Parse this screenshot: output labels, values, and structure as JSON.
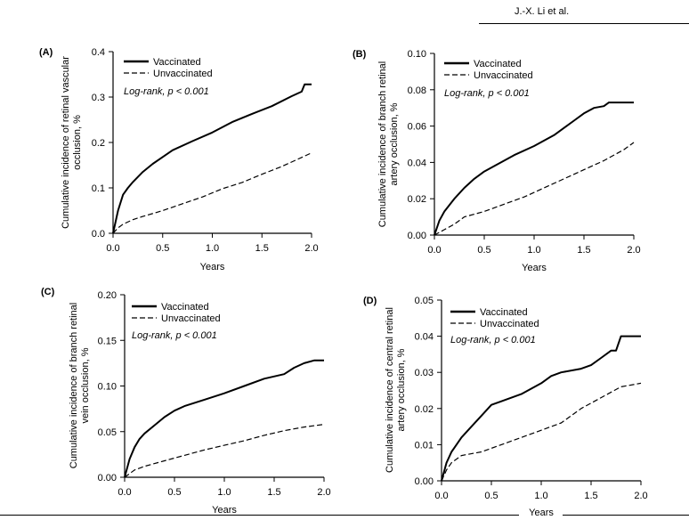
{
  "header": {
    "text": "J.-X. Li et al."
  },
  "chart_data": [
    {
      "type": "line",
      "panel_label": "(A)",
      "xlabel": "Years",
      "ylabel": "Cumulative incidence of retinal vascular occlusion, %",
      "ylabel_lines": [
        "Cumulative incidence of retinal vascular",
        "occlusion, %"
      ],
      "xlim": [
        0,
        2
      ],
      "ylim": [
        0,
        0.4
      ],
      "xticks": [
        0,
        0.5,
        1,
        1.5,
        2
      ],
      "xtick_labels": [
        "0.0",
        "0.5",
        "1.0",
        "1.5",
        "2.0"
      ],
      "yticks": [
        0,
        0.1,
        0.2,
        0.3,
        0.4
      ],
      "ytick_labels": [
        "0.0",
        "0.1",
        "0.2",
        "0.3",
        "0.4"
      ],
      "annotation": "Log-rank, p < 0.001",
      "legend": [
        "Vaccinated",
        "Unvaccinated"
      ],
      "series": [
        {
          "name": "Vaccinated",
          "style": "solid",
          "x": [
            0,
            0.05,
            0.1,
            0.15,
            0.2,
            0.3,
            0.4,
            0.5,
            0.6,
            0.8,
            1.0,
            1.2,
            1.4,
            1.6,
            1.8,
            1.9,
            1.93,
            2.0
          ],
          "y": [
            0,
            0.05,
            0.085,
            0.1,
            0.113,
            0.135,
            0.153,
            0.168,
            0.183,
            0.203,
            0.222,
            0.245,
            0.263,
            0.28,
            0.302,
            0.312,
            0.328,
            0.328
          ]
        },
        {
          "name": "Unvaccinated",
          "style": "dashed",
          "x": [
            0,
            0.05,
            0.1,
            0.2,
            0.3,
            0.5,
            0.7,
            0.9,
            1.1,
            1.3,
            1.5,
            1.7,
            1.9,
            2.0
          ],
          "y": [
            0,
            0.012,
            0.02,
            0.03,
            0.037,
            0.05,
            0.065,
            0.08,
            0.098,
            0.112,
            0.13,
            0.147,
            0.167,
            0.177
          ]
        }
      ]
    },
    {
      "type": "line",
      "panel_label": "(B)",
      "xlabel": "Years",
      "ylabel": "Cumulative incidence of branch retinal artery occlusion, %",
      "ylabel_lines": [
        "Cumulative incidence of branch retinal",
        "artery occlusion, %"
      ],
      "xlim": [
        0,
        2
      ],
      "ylim": [
        0,
        0.1
      ],
      "xticks": [
        0,
        0.5,
        1,
        1.5,
        2
      ],
      "xtick_labels": [
        "0.0",
        "0.5",
        "1.0",
        "1.5",
        "2.0"
      ],
      "yticks": [
        0,
        0.02,
        0.04,
        0.06,
        0.08,
        0.1
      ],
      "ytick_labels": [
        "0.00",
        "0.02",
        "0.04",
        "0.06",
        "0.08",
        "0.10"
      ],
      "annotation": "Log-rank, p < 0.001",
      "legend": [
        "Vaccinated",
        "Unvaccinated"
      ],
      "series": [
        {
          "name": "Vaccinated",
          "style": "solid",
          "x": [
            0,
            0.05,
            0.1,
            0.2,
            0.3,
            0.4,
            0.5,
            0.6,
            0.8,
            1.0,
            1.2,
            1.4,
            1.5,
            1.6,
            1.7,
            1.75,
            2.0
          ],
          "y": [
            0,
            0.008,
            0.013,
            0.02,
            0.026,
            0.031,
            0.035,
            0.038,
            0.044,
            0.049,
            0.055,
            0.063,
            0.067,
            0.07,
            0.071,
            0.073,
            0.073
          ]
        },
        {
          "name": "Unvaccinated",
          "style": "dashed",
          "x": [
            0,
            0.1,
            0.2,
            0.3,
            0.5,
            0.7,
            0.9,
            1.1,
            1.3,
            1.5,
            1.7,
            1.9,
            2.0
          ],
          "y": [
            0,
            0.003,
            0.006,
            0.01,
            0.013,
            0.017,
            0.021,
            0.026,
            0.031,
            0.036,
            0.041,
            0.047,
            0.051
          ]
        }
      ]
    },
    {
      "type": "line",
      "panel_label": "(C)",
      "xlabel": "Years",
      "ylabel": "Cumulative incidence of branch retinal vein occlusion, %",
      "ylabel_lines": [
        "Cumulative incidence of branch retinal",
        "vein occlusion, %"
      ],
      "xlim": [
        0,
        2
      ],
      "ylim": [
        0,
        0.2
      ],
      "xticks": [
        0,
        0.5,
        1,
        1.5,
        2
      ],
      "xtick_labels": [
        "0.0",
        "0.5",
        "1.0",
        "1.5",
        "2.0"
      ],
      "yticks": [
        0,
        0.05,
        0.1,
        0.15,
        0.2
      ],
      "ytick_labels": [
        "0.00",
        "0.05",
        "0.10",
        "0.15",
        "0.20"
      ],
      "annotation": "Log-rank, p < 0.001",
      "legend": [
        "Vaccinated",
        "Unvaccinated"
      ],
      "series": [
        {
          "name": "Vaccinated",
          "style": "solid",
          "x": [
            0,
            0.05,
            0.1,
            0.15,
            0.2,
            0.3,
            0.4,
            0.5,
            0.6,
            0.8,
            1.0,
            1.2,
            1.4,
            1.6,
            1.7,
            1.8,
            1.9,
            2.0
          ],
          "y": [
            0,
            0.02,
            0.033,
            0.042,
            0.048,
            0.057,
            0.066,
            0.073,
            0.078,
            0.085,
            0.092,
            0.1,
            0.108,
            0.113,
            0.12,
            0.125,
            0.128,
            0.128
          ]
        },
        {
          "name": "Unvaccinated",
          "style": "dashed",
          "x": [
            0,
            0.1,
            0.2,
            0.4,
            0.6,
            0.8,
            1.0,
            1.2,
            1.4,
            1.6,
            1.8,
            2.0
          ],
          "y": [
            0,
            0.008,
            0.012,
            0.018,
            0.024,
            0.03,
            0.035,
            0.04,
            0.046,
            0.051,
            0.055,
            0.058
          ]
        }
      ]
    },
    {
      "type": "line",
      "panel_label": "(D)",
      "xlabel": "Years",
      "ylabel": "Cumulative incidence of central retinal artery occlusion, %",
      "ylabel_lines": [
        "Cumulative incidence of central retinal",
        "artery occlusion, %"
      ],
      "xlim": [
        0,
        2
      ],
      "ylim": [
        0,
        0.05
      ],
      "xticks": [
        0,
        0.5,
        1,
        1.5,
        2
      ],
      "xtick_labels": [
        "0.0",
        "0.5",
        "1.0",
        "1.5",
        "2.0"
      ],
      "yticks": [
        0,
        0.01,
        0.02,
        0.03,
        0.04,
        0.05
      ],
      "ytick_labels": [
        "0.00",
        "0.01",
        "0.02",
        "0.03",
        "0.04",
        "0.05"
      ],
      "annotation": "Log-rank, p < 0.001",
      "legend": [
        "Vaccinated",
        "Unvaccinated"
      ],
      "series": [
        {
          "name": "Vaccinated",
          "style": "solid",
          "x": [
            0,
            0.05,
            0.1,
            0.2,
            0.3,
            0.4,
            0.5,
            0.6,
            0.8,
            1.0,
            1.1,
            1.2,
            1.4,
            1.5,
            1.6,
            1.7,
            1.75,
            1.8,
            2.0
          ],
          "y": [
            0,
            0.005,
            0.008,
            0.012,
            0.015,
            0.018,
            0.021,
            0.022,
            0.024,
            0.027,
            0.029,
            0.03,
            0.031,
            0.032,
            0.034,
            0.036,
            0.036,
            0.04,
            0.04
          ]
        },
        {
          "name": "Unvaccinated",
          "style": "dashed",
          "x": [
            0,
            0.05,
            0.1,
            0.2,
            0.4,
            0.6,
            0.8,
            1.0,
            1.2,
            1.4,
            1.6,
            1.8,
            2.0
          ],
          "y": [
            0,
            0.003,
            0.005,
            0.007,
            0.008,
            0.01,
            0.012,
            0.014,
            0.016,
            0.02,
            0.023,
            0.026,
            0.027
          ]
        }
      ]
    }
  ]
}
